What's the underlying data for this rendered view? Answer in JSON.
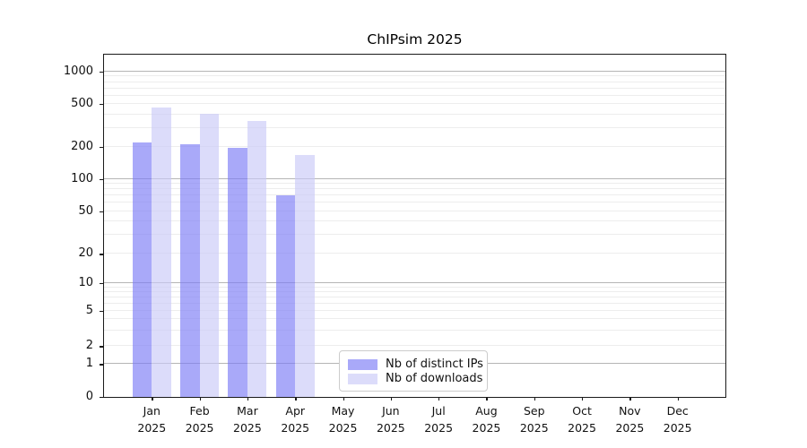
{
  "title": "ChIPsim 2025",
  "chart_data": {
    "type": "bar",
    "title": "ChIPsim 2025",
    "categories": [
      "Jan 2025",
      "Feb 2025",
      "Mar 2025",
      "Apr 2025",
      "May 2025",
      "Jun 2025",
      "Jul 2025",
      "Aug 2025",
      "Sep 2025",
      "Oct 2025",
      "Nov 2025",
      "Dec 2025"
    ],
    "series": [
      {
        "name": "Nb of distinct IPs",
        "color": "#a9a9f6",
        "fill": "rgba(123,123,246,0.65)",
        "values": [
          220,
          212,
          196,
          70,
          0,
          0,
          0,
          0,
          0,
          0,
          0,
          0
        ]
      },
      {
        "name": "Nb of downloads",
        "color": "#dcdcf9",
        "fill": "rgba(201,201,247,0.65)",
        "values": [
          460,
          410,
          350,
          170,
          0,
          0,
          0,
          0,
          0,
          0,
          0,
          0
        ]
      }
    ],
    "xlabel": "",
    "ylabel": "",
    "yscale": "symlog",
    "yticks": [
      0,
      1,
      2,
      5,
      10,
      20,
      50,
      100,
      200,
      500,
      1000
    ],
    "ylim": [
      0,
      1450
    ],
    "grid": "horizontal",
    "legend_position": "bottom-center"
  },
  "axis_colors": {
    "spine": "#1a1a1a",
    "major_grid": "#b5b5b5",
    "minor_grid": "#ededed",
    "tick_label": "#111111"
  }
}
